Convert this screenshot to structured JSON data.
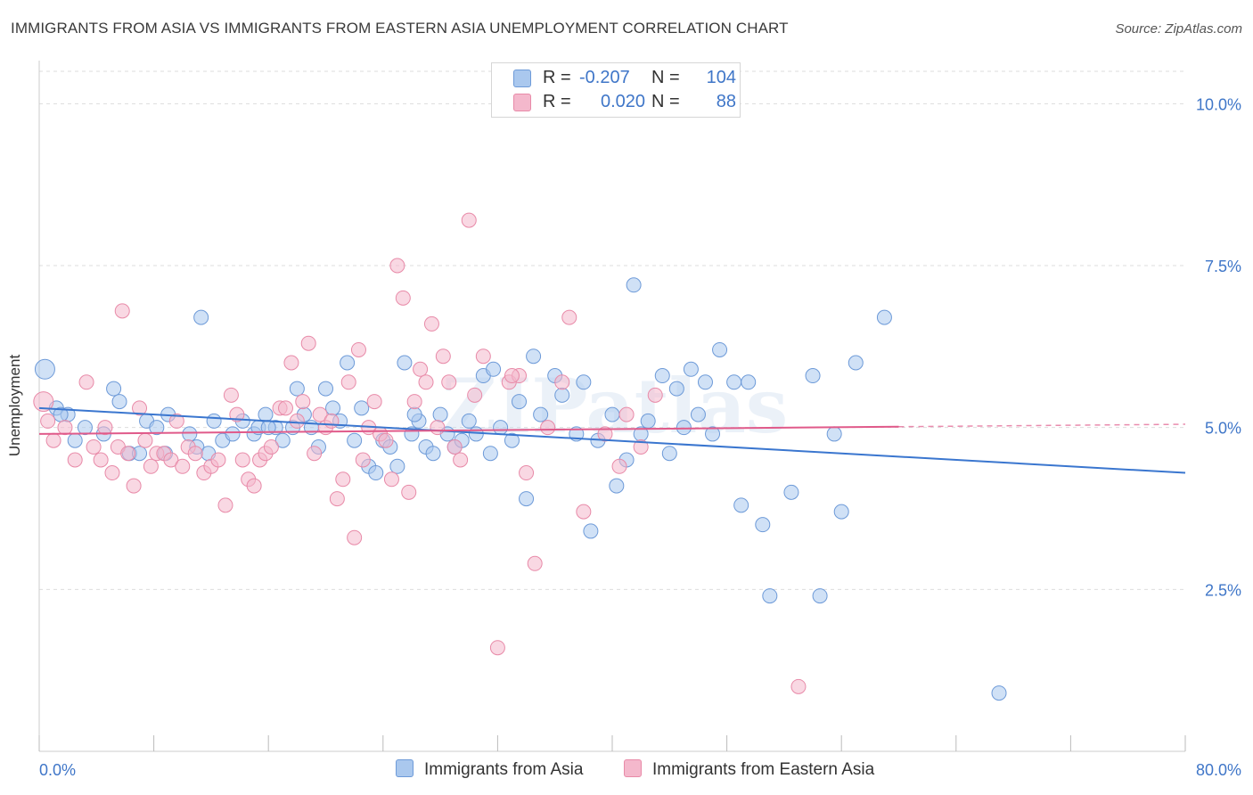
{
  "title": "IMMIGRANTS FROM ASIA VS IMMIGRANTS FROM EASTERN ASIA UNEMPLOYMENT CORRELATION CHART",
  "source": "Source: ZipAtlas.com",
  "watermark": "ZIPatlas",
  "colors": {
    "blue_fill": "#aac8ee",
    "blue_stroke": "#6d9ad8",
    "blue_line": "#3a76cf",
    "pink_fill": "#f4b8cc",
    "pink_stroke": "#e88aa8",
    "pink_line": "#e05a8a",
    "tick_text": "#3f76c8",
    "grid": "#dddddd"
  },
  "legend": {
    "rows": [
      {
        "r_label": "R =",
        "r_value": "-0.207",
        "n_label": "N =",
        "n_value": "104"
      },
      {
        "r_label": "R =",
        "r_value": "0.020",
        "n_label": "N =",
        "n_value": "88"
      }
    ]
  },
  "bottom_legend": {
    "series1": "Immigrants from Asia",
    "series2": "Immigrants from Eastern Asia"
  },
  "chart_data": {
    "type": "scatter",
    "ylabel": "Unemployment",
    "xlim": [
      0,
      80
    ],
    "ylim": [
      0,
      10.5
    ],
    "x_tick_labels": [
      "0.0%",
      "80.0%"
    ],
    "y_ticks": [
      2.5,
      5.0,
      7.5,
      10.0
    ],
    "y_tick_labels": [
      "2.5%",
      "5.0%",
      "7.5%",
      "10.0%"
    ],
    "grid": "horizontal dashed",
    "series": [
      {
        "name": "Immigrants from Asia",
        "trend": {
          "x": [
            0,
            80
          ],
          "y": [
            5.3,
            4.3
          ]
        },
        "points": [
          [
            0.4,
            5.9
          ],
          [
            1.2,
            5.3
          ],
          [
            2.0,
            5.2
          ],
          [
            1.5,
            5.2
          ],
          [
            3.2,
            5.0
          ],
          [
            4.5,
            4.9
          ],
          [
            5.2,
            5.6
          ],
          [
            5.6,
            5.4
          ],
          [
            6.3,
            4.6
          ],
          [
            7.0,
            4.6
          ],
          [
            7.5,
            5.1
          ],
          [
            8.2,
            5.0
          ],
          [
            9.0,
            5.2
          ],
          [
            10.5,
            4.9
          ],
          [
            11.0,
            4.7
          ],
          [
            11.3,
            6.7
          ],
          [
            11.8,
            4.6
          ],
          [
            12.2,
            5.1
          ],
          [
            12.8,
            4.8
          ],
          [
            13.5,
            4.9
          ],
          [
            14.2,
            5.1
          ],
          [
            15.0,
            4.9
          ],
          [
            15.3,
            5.0
          ],
          [
            15.8,
            5.2
          ],
          [
            16.5,
            5.0
          ],
          [
            17.0,
            4.8
          ],
          [
            17.7,
            5.0
          ],
          [
            18.0,
            5.6
          ],
          [
            18.5,
            5.2
          ],
          [
            19.0,
            5.0
          ],
          [
            19.5,
            4.7
          ],
          [
            20.0,
            5.6
          ],
          [
            20.5,
            5.3
          ],
          [
            21.0,
            5.1
          ],
          [
            21.5,
            6.0
          ],
          [
            22.0,
            4.8
          ],
          [
            22.5,
            5.3
          ],
          [
            23.0,
            4.4
          ],
          [
            23.5,
            4.3
          ],
          [
            24.0,
            4.8
          ],
          [
            24.5,
            4.7
          ],
          [
            25.0,
            4.4
          ],
          [
            25.5,
            6.0
          ],
          [
            26.0,
            4.9
          ],
          [
            26.5,
            5.1
          ],
          [
            27.0,
            4.7
          ],
          [
            27.5,
            4.6
          ],
          [
            28.0,
            5.2
          ],
          [
            28.5,
            4.9
          ],
          [
            29.0,
            4.7
          ],
          [
            29.5,
            4.8
          ],
          [
            30.0,
            5.1
          ],
          [
            30.5,
            4.9
          ],
          [
            31.0,
            5.8
          ],
          [
            31.5,
            4.6
          ],
          [
            31.7,
            5.9
          ],
          [
            32.2,
            5.0
          ],
          [
            33.0,
            4.8
          ],
          [
            33.5,
            5.4
          ],
          [
            34.0,
            3.9
          ],
          [
            34.5,
            6.1
          ],
          [
            35.0,
            5.2
          ],
          [
            36.0,
            5.8
          ],
          [
            36.5,
            5.5
          ],
          [
            37.5,
            4.9
          ],
          [
            38.0,
            5.7
          ],
          [
            38.5,
            3.4
          ],
          [
            39.0,
            4.8
          ],
          [
            40.0,
            5.2
          ],
          [
            40.3,
            4.1
          ],
          [
            41.0,
            4.5
          ],
          [
            41.5,
            7.2
          ],
          [
            42.0,
            4.9
          ],
          [
            42.5,
            5.1
          ],
          [
            43.5,
            5.8
          ],
          [
            44.0,
            4.6
          ],
          [
            44.5,
            5.6
          ],
          [
            45.0,
            5.0
          ],
          [
            45.5,
            5.9
          ],
          [
            46.0,
            5.2
          ],
          [
            46.5,
            5.7
          ],
          [
            47.0,
            4.9
          ],
          [
            47.5,
            6.2
          ],
          [
            48.5,
            5.7
          ],
          [
            49.0,
            3.8
          ],
          [
            49.5,
            5.7
          ],
          [
            50.5,
            3.5
          ],
          [
            51.0,
            2.4
          ],
          [
            52.5,
            4.0
          ],
          [
            54.0,
            5.8
          ],
          [
            54.5,
            2.4
          ],
          [
            55.5,
            4.9
          ],
          [
            56.0,
            3.7
          ],
          [
            57.0,
            6.0
          ],
          [
            59.0,
            6.7
          ],
          [
            67.0,
            0.9
          ],
          [
            2.5,
            4.8
          ],
          [
            8.8,
            4.6
          ],
          [
            16.0,
            5.0
          ],
          [
            26.2,
            5.2
          ]
        ]
      },
      {
        "name": "Immigrants from Eastern Asia",
        "trend": {
          "x": [
            0,
            80
          ],
          "y": [
            4.9,
            5.05
          ]
        },
        "points": [
          [
            0.3,
            5.4
          ],
          [
            0.6,
            5.1
          ],
          [
            1.0,
            4.8
          ],
          [
            1.8,
            5.0
          ],
          [
            2.5,
            4.5
          ],
          [
            3.3,
            5.7
          ],
          [
            3.8,
            4.7
          ],
          [
            4.3,
            4.5
          ],
          [
            4.6,
            5.0
          ],
          [
            5.1,
            4.3
          ],
          [
            5.5,
            4.7
          ],
          [
            5.8,
            6.8
          ],
          [
            6.2,
            4.6
          ],
          [
            6.6,
            4.1
          ],
          [
            7.0,
            5.3
          ],
          [
            7.4,
            4.8
          ],
          [
            7.8,
            4.4
          ],
          [
            8.2,
            4.6
          ],
          [
            8.7,
            4.6
          ],
          [
            9.2,
            4.5
          ],
          [
            9.6,
            5.1
          ],
          [
            10.0,
            4.4
          ],
          [
            10.4,
            4.7
          ],
          [
            10.9,
            4.6
          ],
          [
            11.5,
            4.3
          ],
          [
            12.0,
            4.4
          ],
          [
            12.5,
            4.5
          ],
          [
            13.0,
            3.8
          ],
          [
            13.4,
            5.5
          ],
          [
            13.8,
            5.2
          ],
          [
            14.2,
            4.5
          ],
          [
            14.6,
            4.2
          ],
          [
            15.0,
            4.1
          ],
          [
            15.4,
            4.5
          ],
          [
            15.8,
            4.6
          ],
          [
            16.2,
            4.7
          ],
          [
            16.8,
            5.3
          ],
          [
            17.2,
            5.3
          ],
          [
            17.6,
            6.0
          ],
          [
            18.0,
            5.1
          ],
          [
            18.4,
            5.4
          ],
          [
            18.8,
            6.3
          ],
          [
            19.2,
            4.6
          ],
          [
            19.6,
            5.2
          ],
          [
            20.0,
            5.0
          ],
          [
            20.4,
            5.1
          ],
          [
            20.8,
            3.9
          ],
          [
            21.2,
            4.2
          ],
          [
            21.6,
            5.7
          ],
          [
            22.0,
            3.3
          ],
          [
            22.3,
            6.2
          ],
          [
            22.6,
            4.5
          ],
          [
            23.0,
            5.0
          ],
          [
            23.4,
            5.4
          ],
          [
            23.8,
            4.9
          ],
          [
            24.2,
            4.8
          ],
          [
            24.6,
            4.2
          ],
          [
            25.0,
            7.5
          ],
          [
            25.4,
            7.0
          ],
          [
            25.8,
            4.0
          ],
          [
            26.2,
            5.4
          ],
          [
            26.6,
            5.9
          ],
          [
            27.0,
            5.7
          ],
          [
            27.4,
            6.6
          ],
          [
            27.8,
            5.0
          ],
          [
            28.2,
            6.1
          ],
          [
            28.6,
            5.7
          ],
          [
            29.0,
            4.7
          ],
          [
            29.4,
            4.5
          ],
          [
            30.0,
            8.2
          ],
          [
            30.4,
            5.5
          ],
          [
            31.0,
            6.1
          ],
          [
            32.0,
            1.6
          ],
          [
            32.8,
            5.7
          ],
          [
            33.5,
            5.8
          ],
          [
            34.0,
            4.3
          ],
          [
            34.6,
            2.9
          ],
          [
            35.5,
            5.0
          ],
          [
            36.5,
            5.7
          ],
          [
            37.0,
            6.7
          ],
          [
            38.0,
            3.7
          ],
          [
            39.5,
            4.9
          ],
          [
            40.5,
            4.4
          ],
          [
            41.0,
            5.2
          ],
          [
            42.0,
            4.7
          ],
          [
            43.0,
            5.5
          ],
          [
            53.0,
            1.0
          ],
          [
            33.0,
            5.8
          ]
        ]
      }
    ]
  }
}
